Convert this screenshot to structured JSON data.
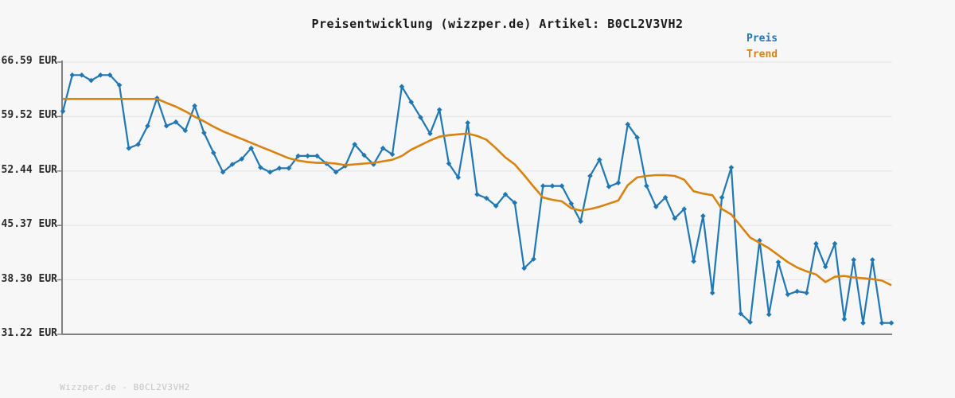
{
  "title": "Preisentwicklung (wizzper.de) Artikel: B0CL2V3VH2",
  "legend": {
    "preis": "Preis",
    "trend": "Trend"
  },
  "footer": "Wizzper.de - B0CL2V3VH2",
  "colors": {
    "preis": "#1f77b4",
    "trend": "#d9820e",
    "grid": "#e8e8e8",
    "spine": "#808080",
    "background": "#f7f7f7",
    "title_text": "#1a1a1a",
    "tick_label": "#2b2b2b",
    "footer_text": "#c4c4c4"
  },
  "y_axis": {
    "tick_labels": [
      "66.59 EUR",
      "59.52 EUR",
      "52.44 EUR",
      "45.37 EUR",
      "38.30 EUR",
      "31.22 EUR"
    ],
    "tick_values": [
      66.59,
      59.52,
      52.44,
      45.37,
      38.3,
      31.22
    ]
  },
  "chart_data": {
    "type": "line",
    "title": "Preisentwicklung (wizzper.de) Artikel: B0CL2V3VH2",
    "xlabel": "",
    "ylabel": "EUR",
    "ylim": [
      31.22,
      66.59
    ],
    "grid": "horizontal",
    "legend_position": "top-right",
    "x_axis_labels": "none",
    "series": [
      {
        "name": "Preis",
        "color": "#1f77b4",
        "marker": "diamond",
        "values": [
          60.2,
          64.9,
          64.9,
          64.2,
          64.9,
          64.9,
          63.6,
          55.4,
          55.9,
          58.3,
          61.9,
          58.3,
          58.8,
          57.7,
          60.9,
          57.4,
          54.8,
          52.3,
          53.3,
          54.0,
          55.4,
          52.9,
          52.3,
          52.8,
          52.8,
          54.4,
          54.4,
          54.4,
          53.4,
          52.3,
          53.1,
          55.9,
          54.5,
          53.3,
          55.4,
          54.6,
          63.4,
          61.4,
          59.4,
          57.3,
          60.4,
          53.4,
          51.6,
          58.7,
          49.4,
          48.9,
          47.9,
          49.4,
          48.3,
          39.8,
          41.0,
          50.5,
          50.5,
          50.5,
          48.2,
          45.9,
          51.8,
          53.9,
          50.4,
          50.9,
          58.5,
          56.8,
          50.5,
          47.8,
          49.0,
          46.3,
          47.5,
          40.7,
          46.6,
          36.6,
          49.0,
          52.9,
          33.9,
          32.8,
          43.4,
          33.8,
          40.6,
          36.4,
          36.8,
          36.6,
          43.0,
          40.0,
          43.0,
          33.2,
          40.9,
          32.7,
          40.9,
          32.7,
          32.7
        ]
      },
      {
        "name": "Trend",
        "color": "#d9820e",
        "marker": "none",
        "values": [
          61.8,
          61.8,
          61.8,
          61.8,
          61.8,
          61.8,
          61.8,
          61.8,
          61.8,
          61.8,
          61.8,
          61.3,
          60.8,
          60.2,
          59.5,
          58.9,
          58.2,
          57.6,
          57.1,
          56.6,
          56.1,
          55.6,
          55.1,
          54.6,
          54.1,
          53.8,
          53.6,
          53.5,
          53.5,
          53.4,
          53.2,
          53.3,
          53.4,
          53.5,
          53.7,
          53.9,
          54.4,
          55.2,
          55.8,
          56.4,
          56.9,
          57.1,
          57.2,
          57.3,
          57.0,
          56.5,
          55.4,
          54.2,
          53.3,
          51.9,
          50.4,
          49.0,
          48.7,
          48.5,
          47.6,
          47.3,
          47.5,
          47.8,
          48.2,
          48.6,
          50.6,
          51.6,
          51.8,
          51.9,
          51.9,
          51.8,
          51.3,
          49.8,
          49.5,
          49.3,
          47.5,
          46.8,
          45.3,
          43.8,
          43.1,
          42.4,
          41.5,
          40.6,
          39.9,
          39.4,
          39.0,
          38.0,
          38.7,
          38.8,
          38.6,
          38.5,
          38.4,
          38.2,
          37.6
        ]
      }
    ]
  }
}
